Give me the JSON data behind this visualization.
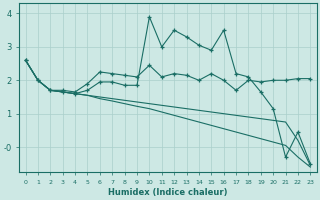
{
  "xlabel": "Humidex (Indice chaleur)",
  "bg_color": "#cde8e4",
  "grid_color": "#aacfcb",
  "line_color": "#1a6e65",
  "xlim": [
    -0.5,
    23.5
  ],
  "ylim": [
    -0.75,
    4.3
  ],
  "yticks": [
    0,
    1,
    2,
    3,
    4
  ],
  "ytick_labels": [
    "-0",
    "1",
    "2",
    "3",
    "4"
  ],
  "series": [
    {
      "y": [
        2.6,
        2.0,
        1.7,
        1.7,
        1.65,
        1.9,
        2.25,
        2.2,
        2.15,
        2.1,
        2.45,
        2.1,
        2.2,
        2.15,
        2.0,
        2.2,
        2.0,
        1.7,
        2.0,
        1.95,
        2.0,
        2.0,
        2.05,
        2.05
      ],
      "marker": "+"
    },
    {
      "y": [
        2.6,
        2.0,
        1.7,
        1.65,
        1.6,
        1.7,
        1.95,
        1.95,
        1.85,
        1.85,
        3.9,
        3.0,
        3.5,
        3.3,
        3.05,
        2.9,
        3.5,
        2.2,
        2.1,
        1.65,
        1.15,
        -0.3,
        0.45,
        -0.5
      ],
      "marker": "+"
    },
    {
      "y": [
        2.6,
        2.0,
        1.7,
        1.65,
        1.6,
        1.55,
        1.5,
        1.45,
        1.4,
        1.35,
        1.3,
        1.25,
        1.2,
        1.15,
        1.1,
        1.05,
        1.0,
        0.95,
        0.9,
        0.85,
        0.8,
        0.75,
        0.2,
        -0.55
      ],
      "marker": null
    },
    {
      "y": [
        2.6,
        2.0,
        1.7,
        1.65,
        1.6,
        1.55,
        1.45,
        1.38,
        1.3,
        1.22,
        1.15,
        1.05,
        0.95,
        0.85,
        0.75,
        0.65,
        0.55,
        0.45,
        0.35,
        0.25,
        0.15,
        0.05,
        -0.3,
        -0.6
      ],
      "marker": null
    }
  ]
}
